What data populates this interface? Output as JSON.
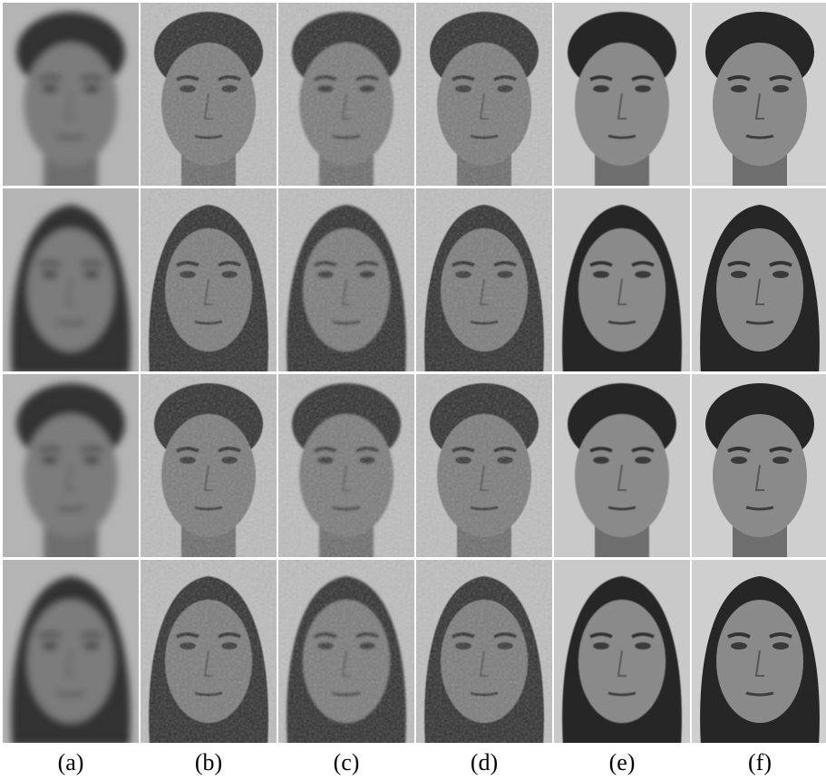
{
  "figure": {
    "panels": [
      "(a)",
      "(b)",
      "(c)",
      "(d)",
      "(e)",
      "(f)"
    ]
  }
}
